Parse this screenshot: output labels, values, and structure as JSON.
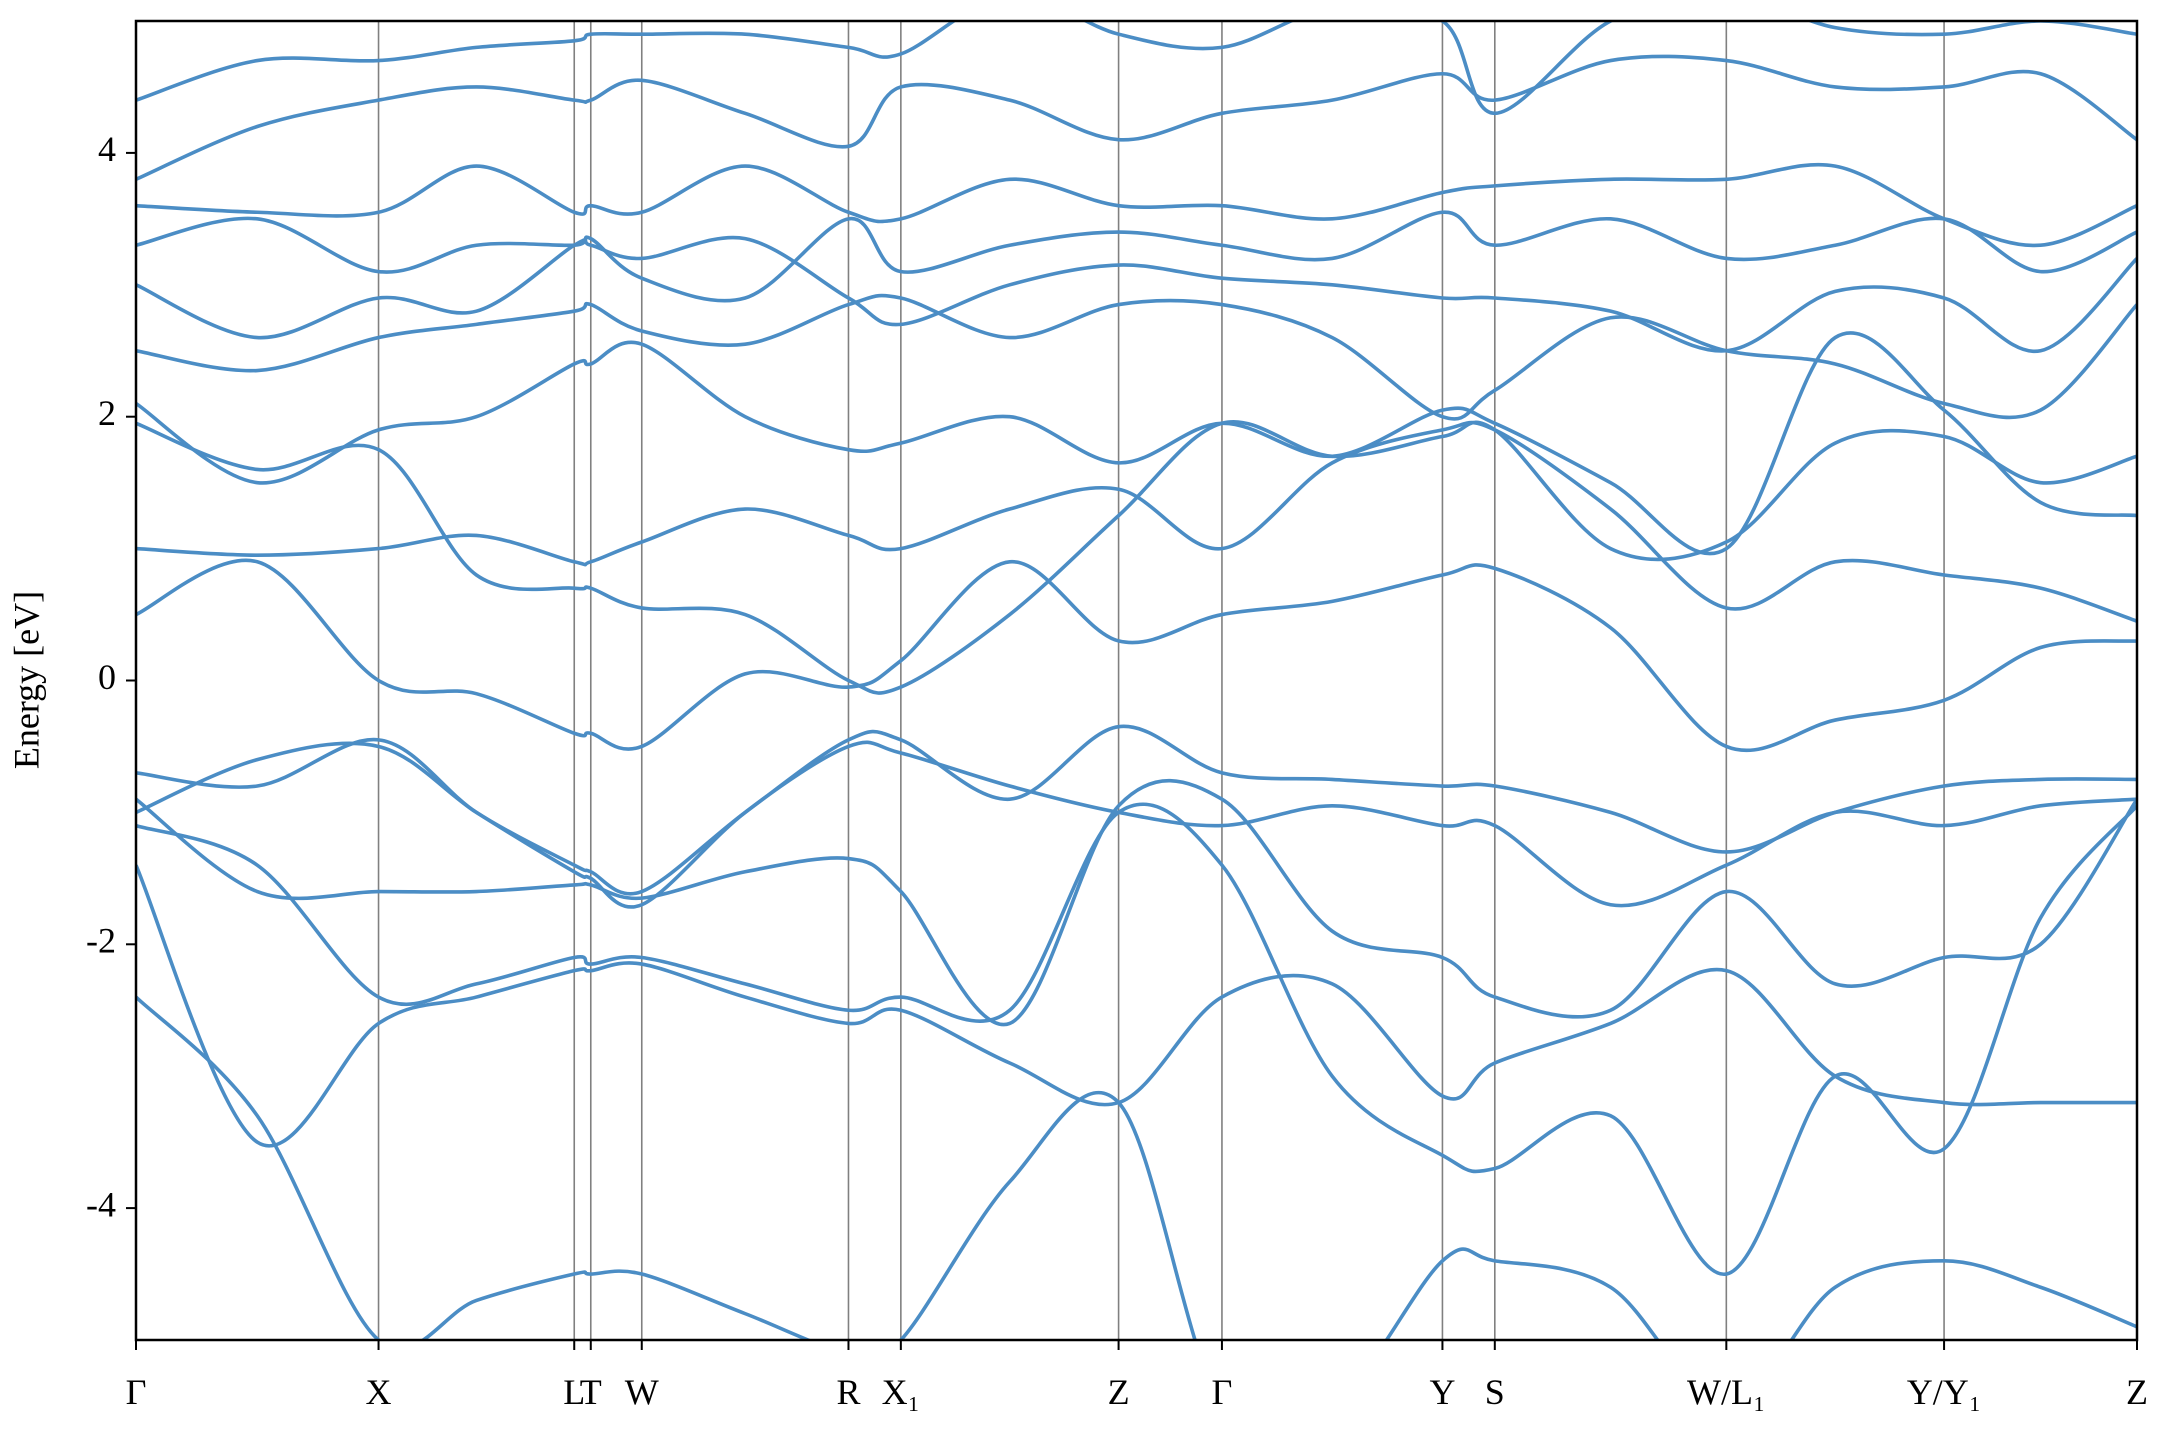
{
  "chart_data": {
    "type": "line",
    "ylabel": "Energy [eV]",
    "x": [
      0,
      88,
      176,
      247,
      318,
      330,
      367,
      442,
      517,
      555,
      634,
      713,
      788,
      868,
      948,
      986,
      1070,
      1154,
      1233,
      1312,
      1382,
      1452
    ],
    "xlim": [
      0,
      1452
    ],
    "xticks": [
      {
        "value": 0,
        "label": "Γ"
      },
      {
        "value": 176,
        "label": "X"
      },
      {
        "value": 318,
        "label": "L"
      },
      {
        "value": 330,
        "label": "T"
      },
      {
        "value": 367,
        "label": "W"
      },
      {
        "value": 517,
        "label": "R"
      },
      {
        "value": 555,
        "label": "X₁"
      },
      {
        "value": 713,
        "label": "Z"
      },
      {
        "value": 788,
        "label": "Γ"
      },
      {
        "value": 948,
        "label": "Y"
      },
      {
        "value": 986,
        "label": "S"
      },
      {
        "value": 1154,
        "label": "W/L₁"
      },
      {
        "value": 1312,
        "label": "Y/Y₁"
      },
      {
        "value": 1452,
        "label": "Z"
      }
    ],
    "ylim": [
      -5,
      5
    ],
    "yticks": [
      -4,
      -2,
      0,
      2,
      4
    ],
    "xgrid": true,
    "series": [
      {
        "color": "#4b8dc5",
        "values": [
          -2.4,
          -3.3,
          -5,
          -4.7,
          -4.5,
          -4.5,
          -4.5,
          -4.8,
          -5.1,
          -5.0,
          -3.8,
          -3.2,
          -5.5,
          -5.5,
          -4.4,
          -4.4,
          -4.6,
          -5.5,
          -4.6,
          -4.4,
          -4.6,
          -4.9
        ]
      },
      {
        "color": "#4b8dc5",
        "values": [
          -1.4,
          -3.5,
          -2.6,
          -2.4,
          -2.2,
          -2.2,
          -2.15,
          -2.4,
          -2.6,
          -2.5,
          -2.9,
          -3.2,
          -2.4,
          -2.3,
          -3.15,
          -2.9,
          -2.6,
          -2.2,
          -3.0,
          -3.2,
          -3.2,
          -3.2
        ]
      },
      {
        "color": "#4b8dc5",
        "values": [
          -1.1,
          -1.4,
          -2.4,
          -2.3,
          -2.1,
          -2.15,
          -2.1,
          -2.3,
          -2.5,
          -2.4,
          -2.5,
          -1.0,
          -1.4,
          -3.0,
          -3.6,
          -3.7,
          -3.3,
          -4.5,
          -3.0,
          -3.55,
          -1.8,
          -0.95
        ]
      },
      {
        "color": "#4b8dc5",
        "values": [
          -0.9,
          -1.6,
          -1.6,
          -1.6,
          -1.55,
          -1.55,
          -1.65,
          -1.45,
          -1.35,
          -1.6,
          -2.6,
          -0.95,
          -0.9,
          -1.9,
          -2.1,
          -2.4,
          -2.5,
          -1.6,
          -2.3,
          -2.1,
          -2.0,
          -0.9
        ]
      },
      {
        "color": "#4b8dc5",
        "values": [
          -1.0,
          -0.6,
          -0.5,
          -1.0,
          -1.45,
          -1.5,
          -1.7,
          -1.0,
          -0.5,
          -0.55,
          -0.8,
          -1.0,
          -1.1,
          -0.95,
          -1.1,
          -1.1,
          -1.7,
          -1.4,
          -1.0,
          -1.1,
          -0.95,
          -0.9
        ]
      },
      {
        "color": "#4b8dc5",
        "values": [
          -0.7,
          -0.8,
          -0.45,
          -1.0,
          -1.4,
          -1.45,
          -1.6,
          -1.0,
          -0.45,
          -0.45,
          -0.9,
          -0.35,
          -0.7,
          -0.75,
          -0.8,
          -0.8,
          -1.0,
          -1.3,
          -1.0,
          -0.8,
          -0.75,
          -0.75
        ]
      },
      {
        "color": "#4b8dc5",
        "values": [
          0.5,
          0.9,
          0.0,
          -0.1,
          -0.4,
          -0.4,
          -0.5,
          0.05,
          -0.05,
          0.15,
          0.9,
          0.3,
          0.5,
          0.6,
          0.8,
          0.85,
          0.4,
          -0.5,
          -0.3,
          -0.15,
          0.25,
          0.3
        ]
      },
      {
        "color": "#4b8dc5",
        "values": [
          1.0,
          0.95,
          1.0,
          1.1,
          0.9,
          0.9,
          1.05,
          1.3,
          1.1,
          1.0,
          1.3,
          1.45,
          1.0,
          1.65,
          1.9,
          1.9,
          1.3,
          0.55,
          0.9,
          0.8,
          0.7,
          0.45
        ]
      },
      {
        "color": "#4b8dc5",
        "values": [
          1.95,
          1.6,
          1.75,
          0.8,
          0.7,
          0.7,
          0.55,
          0.5,
          0.0,
          -0.05,
          0.5,
          1.25,
          1.95,
          1.7,
          1.85,
          1.9,
          1.0,
          1.05,
          1.8,
          1.85,
          1.5,
          1.7
        ]
      },
      {
        "color": "#4b8dc5",
        "values": [
          2.1,
          1.5,
          1.9,
          2.0,
          2.4,
          2.4,
          2.55,
          2.0,
          1.75,
          1.8,
          2.0,
          1.65,
          1.95,
          1.7,
          2.05,
          1.95,
          1.5,
          1.0,
          2.6,
          2.05,
          1.35,
          1.25
        ]
      },
      {
        "color": "#4b8dc5",
        "values": [
          2.5,
          2.35,
          2.6,
          2.7,
          2.8,
          2.85,
          2.65,
          2.55,
          2.85,
          2.9,
          2.6,
          2.85,
          2.85,
          2.6,
          2.0,
          2.2,
          2.75,
          2.5,
          2.4,
          2.1,
          2.05,
          2.85
        ]
      },
      {
        "color": "#4b8dc5",
        "values": [
          3.0,
          2.6,
          2.9,
          2.8,
          3.3,
          3.3,
          3.2,
          3.35,
          2.9,
          2.7,
          3.0,
          3.15,
          3.05,
          3.0,
          2.9,
          2.9,
          2.8,
          2.5,
          2.95,
          2.9,
          2.5,
          3.2
        ]
      },
      {
        "color": "#4b8dc5",
        "values": [
          3.3,
          3.5,
          3.1,
          3.3,
          3.3,
          3.35,
          3.05,
          2.9,
          3.5,
          3.1,
          3.3,
          3.4,
          3.3,
          3.2,
          3.55,
          3.3,
          3.5,
          3.2,
          3.3,
          3.5,
          3.1,
          3.4
        ]
      },
      {
        "color": "#4b8dc5",
        "values": [
          3.6,
          3.55,
          3.55,
          3.9,
          3.55,
          3.6,
          3.55,
          3.9,
          3.55,
          3.5,
          3.8,
          3.6,
          3.6,
          3.5,
          3.7,
          3.75,
          3.8,
          3.8,
          3.9,
          3.5,
          3.3,
          3.6
        ]
      },
      {
        "color": "#4b8dc5",
        "values": [
          3.8,
          4.2,
          4.4,
          4.5,
          4.4,
          4.4,
          4.55,
          4.3,
          4.05,
          4.5,
          4.4,
          4.1,
          4.3,
          4.4,
          4.6,
          4.4,
          4.7,
          4.7,
          4.5,
          4.5,
          4.6,
          4.1
        ]
      },
      {
        "color": "#4b8dc5",
        "values": [
          4.4,
          4.7,
          4.7,
          4.8,
          4.85,
          4.9,
          4.9,
          4.9,
          4.8,
          4.75,
          5.2,
          4.9,
          4.8,
          5.1,
          5.0,
          4.3,
          5.0,
          5.2,
          4.95,
          4.9,
          5.0,
          4.9
        ]
      }
    ]
  }
}
